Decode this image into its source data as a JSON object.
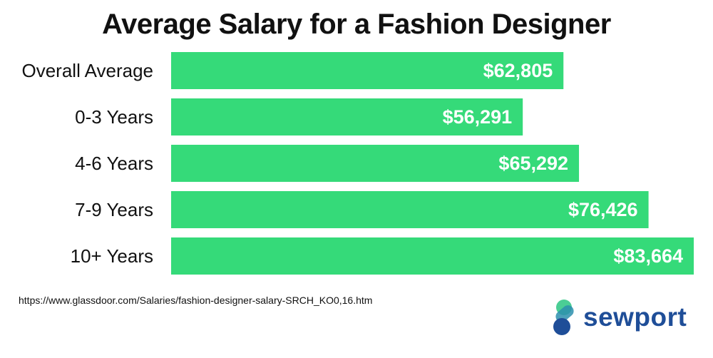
{
  "chart_data": {
    "type": "bar",
    "orientation": "horizontal",
    "title": "Average Salary for a Fashion Designer",
    "categories": [
      "Overall Average",
      "0-3 Years",
      "4-6 Years",
      "7-9 Years",
      "10+ Years"
    ],
    "values": [
      62805,
      56291,
      65292,
      76426,
      83664
    ],
    "value_labels": [
      "$62,805",
      "$56,291",
      "$65,292",
      "$76,426",
      "$83,664"
    ],
    "bar_color": "#35da79",
    "grid": false,
    "legend": "none"
  },
  "source_url": "https://www.glassdoor.com/Salaries/fashion-designer-salary-SRCH_KO0,16.htm",
  "logo": {
    "text": "sewport",
    "colors": {
      "green": "#37c98a",
      "blue": "#1f4e98"
    }
  }
}
